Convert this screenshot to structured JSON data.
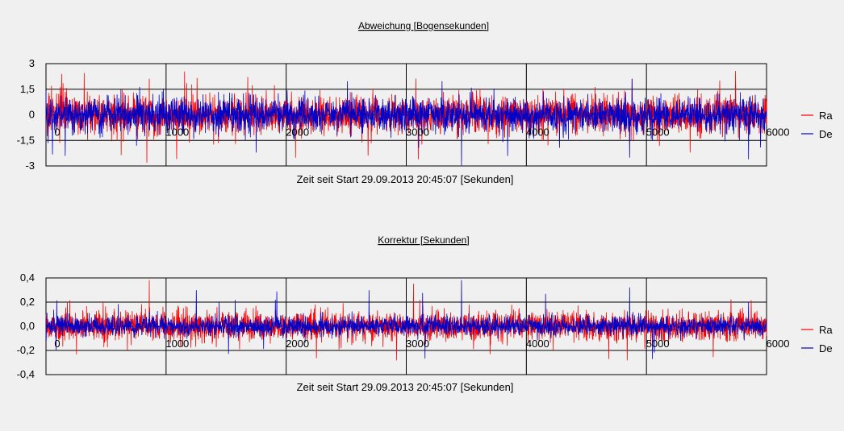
{
  "chart_data": [
    {
      "type": "line",
      "title": "Abweichung [Bogensekunden]",
      "xlabel": "Zeit seit Start 29.09.2013 20:45:07 [Sekunden]",
      "ylabel": "",
      "xlim": [
        0,
        6000
      ],
      "ylim": [
        -3,
        3
      ],
      "x_ticks": [
        "0",
        "1000",
        "2000",
        "3000",
        "4000",
        "5000",
        "6000"
      ],
      "y_ticks": [
        "3",
        "1,5",
        "0",
        "-1,5",
        "-3"
      ],
      "grid": true,
      "legend_position": "right",
      "sample_interval": 2,
      "series": [
        {
          "name": "Ra",
          "color": "#ff0000",
          "amplitude": 0.55,
          "spike_max": 2.75,
          "spikes": [
            [
              840,
              -2.8
            ],
            [
              860,
              2.1
            ],
            [
              1680,
              2.2
            ],
            [
              3100,
              -2.6
            ],
            [
              3080,
              2.1
            ],
            [
              4880,
              2.1
            ],
            [
              5610,
              2.0
            ]
          ]
        },
        {
          "name": "De",
          "color": "#0000c8",
          "amplitude": 0.5,
          "spike_max": 2.6,
          "spikes": [
            [
              160,
              -2.4
            ],
            [
              1750,
              -2.2
            ],
            [
              3460,
              -2.95
            ],
            [
              4880,
              2.1
            ],
            [
              4860,
              -2.5
            ],
            [
              5850,
              -2.6
            ],
            [
              5950,
              -1.9
            ]
          ]
        }
      ]
    },
    {
      "type": "line",
      "title": "Korrektur [Sekunden]",
      "xlabel": "Zeit seit Start 29.09.2013 20:45:07 [Sekunden]",
      "ylabel": "",
      "xlim": [
        0,
        6000
      ],
      "ylim": [
        -0.4,
        0.4
      ],
      "x_ticks": [
        "0",
        "1000",
        "2000",
        "3000",
        "4000",
        "5000",
        "6000"
      ],
      "y_ticks": [
        "0,4",
        "0,2",
        "0,0",
        "-0,2",
        "-0,4"
      ],
      "grid": true,
      "legend_position": "right",
      "sample_interval": 2,
      "series": [
        {
          "name": "Ra",
          "color": "#ff0000",
          "amplitude": 0.06,
          "spike_max": 0.27,
          "spikes": [
            [
              860,
              0.38
            ],
            [
              2920,
              -0.28
            ],
            [
              3060,
              0.35
            ],
            [
              4840,
              -0.28
            ]
          ]
        },
        {
          "name": "De",
          "color": "#0000c8",
          "amplitude": 0.04,
          "spike_max": 0.3,
          "spikes": [
            [
              3460,
              0.38
            ],
            [
              4860,
              0.32
            ],
            [
              5050,
              -0.27
            ],
            [
              5850,
              0.2
            ]
          ]
        }
      ]
    }
  ]
}
